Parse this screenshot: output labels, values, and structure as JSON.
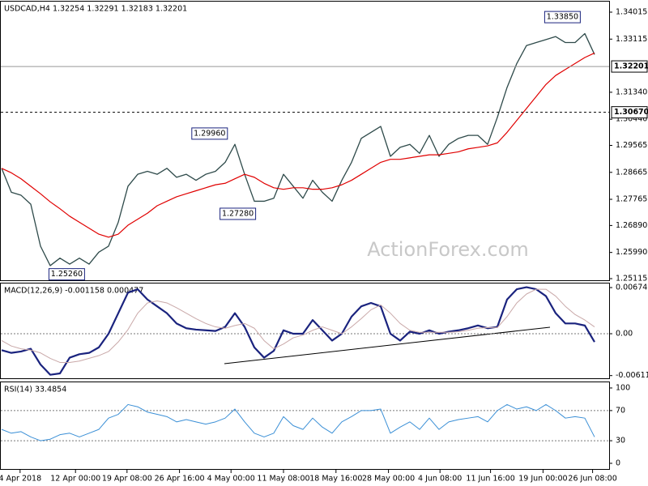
{
  "chart_data": [
    {
      "type": "line",
      "title": "USDCAD,H4 1.32254 1.32291 1.32183 1.32201",
      "watermark": "ActionForex.com",
      "ylim": [
        1.25061,
        1.34367
      ],
      "yticks": [
        1.34015,
        1.33115,
        {
          "value": 1.3134,
          "label": "1.31340"
        },
        {
          "value": 1.3044,
          "label": "1.30440"
        },
        1.29565,
        1.28665,
        1.27765,
        {
          "value": 1.2689,
          "label": "1.26890"
        },
        {
          "value": 1.2599,
          "label": "1.25990"
        },
        1.25115
      ],
      "price_lines": [
        1.32201,
        {
          "value": 1.3067,
          "label": "1.30670"
        }
      ],
      "price_line_styles": [
        "solid",
        "dashed"
      ],
      "series": [
        {
          "color": "#2e4a4a",
          "width": 1.3,
          "values": [
            1.288,
            1.28,
            1.279,
            1.276,
            1.262,
            1.2555,
            1.258,
            1.256,
            1.258,
            1.256,
            1.26,
            1.262,
            1.27,
            1.282,
            1.286,
            1.287,
            1.286,
            1.288,
            1.285,
            1.286,
            1.284,
            1.286,
            1.287,
            1.29,
            1.296,
            1.286,
            1.277,
            1.277,
            1.278,
            1.286,
            1.282,
            1.278,
            1.284,
            1.28,
            1.277,
            1.284,
            1.29,
            1.298,
            1.3,
            1.302,
            1.292,
            1.295,
            1.296,
            1.293,
            1.299,
            1.292,
            1.296,
            1.298,
            1.299,
            1.299,
            1.296,
            1.305,
            1.315,
            1.323,
            1.329,
            1.33,
            1.331,
            1.332,
            1.33,
            1.33,
            1.333,
            1.326
          ]
        },
        {
          "color": "#e00000",
          "width": 1.2,
          "values": [
            1.288,
            1.2865,
            1.2845,
            1.282,
            1.2795,
            1.2768,
            1.2745,
            1.272,
            1.27,
            1.268,
            1.266,
            1.265,
            1.266,
            1.269,
            1.271,
            1.273,
            1.2755,
            1.277,
            1.2785,
            1.2795,
            1.2805,
            1.2815,
            1.2825,
            1.283,
            1.2845,
            1.286,
            1.285,
            1.283,
            1.2815,
            1.281,
            1.2815,
            1.2815,
            1.281,
            1.281,
            1.2815,
            1.2825,
            1.284,
            1.286,
            1.288,
            1.29,
            1.291,
            1.291,
            1.2915,
            1.292,
            1.2925,
            1.2925,
            1.293,
            1.2935,
            1.2945,
            1.295,
            1.2955,
            1.2965,
            1.3,
            1.304,
            1.308,
            1.312,
            1.316,
            1.319,
            1.321,
            1.323,
            1.325,
            1.3265
          ]
        }
      ],
      "annotations": [
        {
          "x": 57.7,
          "value": 1.3385,
          "label": "1.33850"
        },
        {
          "x": 21.4,
          "value": 1.2996,
          "label": "1.29960"
        },
        {
          "x": 24.3,
          "value": 1.2728,
          "label": "1.27280"
        },
        {
          "x": 6.7,
          "value": 1.2526,
          "label": "1.25260"
        }
      ]
    },
    {
      "type": "line",
      "title": "MACD(12,26,9) -0.001158 0.000477",
      "ylim": [
        -0.00663,
        0.00734
      ],
      "yticks": [
        0.006745,
        {
          "value": 0,
          "label": "0.00"
        },
        -0.006119
      ],
      "levels": [
        0
      ],
      "series": [
        {
          "color": "#1a237e",
          "width": 2.2,
          "values": [
            -0.0024,
            -0.0028,
            -0.0026,
            -0.0022,
            -0.0045,
            -0.006,
            -0.0058,
            -0.0035,
            -0.003,
            -0.0028,
            -0.002,
            0,
            0.003,
            0.006,
            0.0065,
            0.005,
            0.004,
            0.003,
            0.0015,
            0.0008,
            0.0006,
            0.0005,
            0.0004,
            0.001,
            0.003,
            0.001,
            -0.002,
            -0.0035,
            -0.0025,
            0.0005,
            0,
            0,
            0.002,
            0.0005,
            -0.001,
            0,
            0.0025,
            0.004,
            0.0045,
            0.004,
            0,
            -0.001,
            0.0003,
            0,
            0.0005,
            0,
            0.0003,
            0.0005,
            0.0008,
            0.0012,
            0.0008,
            0.001,
            0.005,
            0.0065,
            0.0068,
            0.0065,
            0.0055,
            0.003,
            0.0015,
            0.0015,
            0.0012,
            -0.0012
          ]
        },
        {
          "color": "#c9a8a8",
          "width": 1,
          "values": [
            -0.001,
            -0.0018,
            -0.0022,
            -0.0024,
            -0.0028,
            -0.0036,
            -0.0042,
            -0.0042,
            -0.004,
            -0.0036,
            -0.0032,
            -0.0026,
            -0.0012,
            0.0006,
            0.003,
            0.0045,
            0.0048,
            0.0045,
            0.0038,
            0.003,
            0.0022,
            0.0015,
            0.001,
            0.0008,
            0.0012,
            0.0015,
            0.0008,
            -0.001,
            -0.0022,
            -0.0015,
            -0.0006,
            -0.0002,
            0.0005,
            0.001,
            0.0005,
            0,
            0.001,
            0.0022,
            0.0035,
            0.0042,
            0.003,
            0.0015,
            0.0005,
            0.0002,
            0.0002,
            0.0002,
            0.0002,
            0.0003,
            0.0005,
            0.0008,
            0.0009,
            0.0009,
            0.0025,
            0.0045,
            0.0058,
            0.0065,
            0.0065,
            0.0055,
            0.004,
            0.0028,
            0.002,
            0.001
          ]
        }
      ]
    },
    {
      "type": "line",
      "title": "RSI(14) 33.4854",
      "ylim": [
        -8.6,
        107.5
      ],
      "yticks": [
        100,
        70,
        30,
        0
      ],
      "levels": [
        70,
        30
      ],
      "series": [
        {
          "color": "#3a8fd6",
          "width": 1,
          "values": [
            45,
            40,
            42,
            35,
            30,
            32,
            38,
            40,
            35,
            40,
            45,
            60,
            65,
            78,
            75,
            68,
            65,
            62,
            55,
            58,
            55,
            52,
            55,
            60,
            72,
            55,
            40,
            35,
            40,
            62,
            50,
            45,
            60,
            48,
            40,
            55,
            62,
            70,
            70,
            72,
            40,
            48,
            55,
            45,
            60,
            45,
            55,
            58,
            60,
            62,
            55,
            70,
            78,
            72,
            75,
            70,
            78,
            70,
            60,
            62,
            60,
            35
          ]
        }
      ],
      "xticks": [
        {
          "value": 1.9,
          "label": "4 Apr 2018"
        },
        {
          "value": 7.6,
          "label": "12 Apr 00:00"
        },
        {
          "value": 12.9,
          "label": "19 Apr 08:00"
        },
        {
          "value": 18.3,
          "label": "26 Apr 16:00"
        },
        {
          "value": 23.6,
          "label": "4 May 00:00"
        },
        {
          "value": 29,
          "label": "11 May 08:00"
        },
        {
          "value": 34.4,
          "label": "18 May 16:00"
        },
        {
          "value": 39.8,
          "label": "28 May 00:00"
        },
        {
          "value": 45.1,
          "label": "4 Jun 08:00"
        },
        {
          "value": 50.3,
          "label": "11 Jun 16:00"
        },
        {
          "value": 55.7,
          "label": "19 Jun 00:00"
        },
        {
          "value": 60.8,
          "label": "26 Jun 08:00"
        }
      ]
    }
  ]
}
